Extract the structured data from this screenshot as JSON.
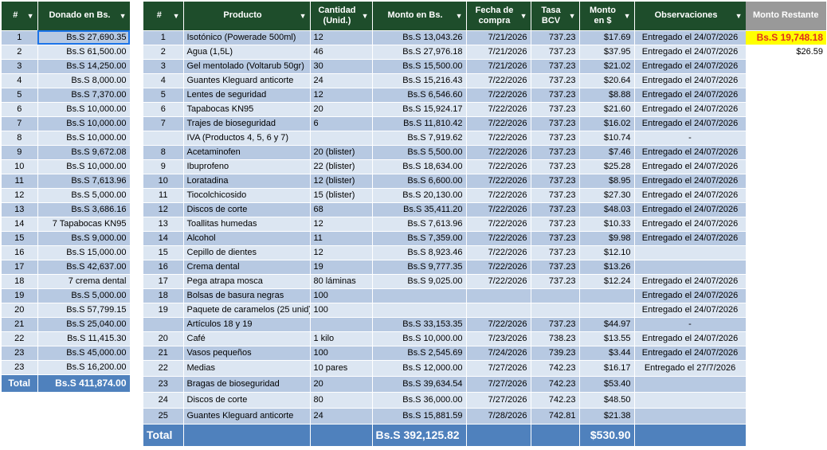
{
  "donations": {
    "headers": {
      "idx": "#",
      "amount": "Donado en Bs."
    },
    "rows": [
      {
        "n": "1",
        "v": "Bs.S 27,690.35"
      },
      {
        "n": "2",
        "v": "Bs.S 61,500.00"
      },
      {
        "n": "3",
        "v": "Bs.S 14,250.00"
      },
      {
        "n": "4",
        "v": "Bs.S 8,000.00"
      },
      {
        "n": "5",
        "v": "Bs.S 7,370.00"
      },
      {
        "n": "6",
        "v": "Bs.S 10,000.00"
      },
      {
        "n": "7",
        "v": "Bs.S 10,000.00"
      },
      {
        "n": "8",
        "v": "Bs.S 10,000.00"
      },
      {
        "n": "9",
        "v": "Bs.S 9,672.08"
      },
      {
        "n": "10",
        "v": "Bs.S 10,000.00"
      },
      {
        "n": "11",
        "v": "Bs.S 7,613.96"
      },
      {
        "n": "12",
        "v": "Bs.S 5,000.00"
      },
      {
        "n": "13",
        "v": "Bs.S 3,686.16"
      },
      {
        "n": "14",
        "v": "7 Tapabocas KN95"
      },
      {
        "n": "15",
        "v": "Bs.S 9,000.00"
      },
      {
        "n": "16",
        "v": "Bs.S 15,000.00"
      },
      {
        "n": "17",
        "v": "Bs.S 42,637.00"
      },
      {
        "n": "18",
        "v": "7 crema dental"
      },
      {
        "n": "19",
        "v": "Bs.S 5,000.00"
      },
      {
        "n": "20",
        "v": "Bs.S 57,799.15"
      },
      {
        "n": "21",
        "v": "Bs.S 25,040.00"
      },
      {
        "n": "22",
        "v": "Bs.S 11,415.30"
      },
      {
        "n": "23",
        "v": "Bs.S 45,000.00"
      },
      {
        "n": "23",
        "v": "Bs.S 16,200.00"
      }
    ],
    "total_label": "Total",
    "total_value": "Bs.S 411,874.00"
  },
  "purchases": {
    "headers": {
      "idx": "#",
      "product": "Producto",
      "qty_line1": "Cantidad",
      "qty_line2": "(Unid.)",
      "amount": "Monto en Bs.",
      "date_line1": "Fecha de",
      "date_line2": "compra",
      "rate_line1": "Tasa",
      "rate_line2": "BCV",
      "usd_line1": "Monto",
      "usd_line2": "en $",
      "notes": "Observaciones"
    },
    "rows": [
      {
        "n": "1",
        "p": "Isotónico (Powerade 500ml)",
        "q": "12",
        "a": "Bs.S 13,043.26",
        "d": "7/21/2026",
        "t": "737.23",
        "u": "$17.69",
        "o": "Entregado el 24/07/2026"
      },
      {
        "n": "2",
        "p": "Agua (1,5L)",
        "q": "46",
        "a": "Bs.S 27,976.18",
        "d": "7/21/2026",
        "t": "737.23",
        "u": "$37.95",
        "o": "Entregado el 24/07/2026"
      },
      {
        "n": "3",
        "p": "Gel mentolado (Voltarub 50gr)",
        "q": "30",
        "a": "Bs.S 15,500.00",
        "d": "7/21/2026",
        "t": "737.23",
        "u": "$21.02",
        "o": "Entregado el 24/07/2026"
      },
      {
        "n": "4",
        "p": "Guantes Kleguard anticorte",
        "q": "24",
        "a": "Bs.S 15,216.43",
        "d": "7/22/2026",
        "t": "737.23",
        "u": "$20.64",
        "o": "Entregado el 24/07/2026"
      },
      {
        "n": "5",
        "p": "Lentes de seguridad",
        "q": "12",
        "a": "Bs.S 6,546.60",
        "d": "7/22/2026",
        "t": "737.23",
        "u": "$8.88",
        "o": "Entregado el 24/07/2026"
      },
      {
        "n": "6",
        "p": "Tapabocas KN95",
        "q": "20",
        "a": "Bs.S 15,924.17",
        "d": "7/22/2026",
        "t": "737.23",
        "u": "$21.60",
        "o": "Entregado el 24/07/2026"
      },
      {
        "n": "7",
        "p": "Trajes de bioseguridad",
        "q": "6",
        "a": "Bs.S 11,810.42",
        "d": "7/22/2026",
        "t": "737.23",
        "u": "$16.02",
        "o": "Entregado el 24/07/2026"
      },
      {
        "n": "",
        "p": "IVA (Productos 4, 5, 6 y 7)",
        "q": "",
        "a": "Bs.S 7,919.62",
        "d": "7/22/2026",
        "t": "737.23",
        "u": "$10.74",
        "o": "-"
      },
      {
        "n": "8",
        "p": "Acetaminofen",
        "q": "20 (blister)",
        "a": "Bs.S 5,500.00",
        "d": "7/22/2026",
        "t": "737.23",
        "u": "$7.46",
        "o": "Entregado el 24/07/2026"
      },
      {
        "n": "9",
        "p": "Ibuprofeno",
        "q": "22 (blister)",
        "a": "Bs.S 18,634.00",
        "d": "7/22/2026",
        "t": "737.23",
        "u": "$25.28",
        "o": "Entregado el 24/07/2026"
      },
      {
        "n": "10",
        "p": "Loratadina",
        "q": "12 (blister)",
        "a": "Bs.S 6,600.00",
        "d": "7/22/2026",
        "t": "737.23",
        "u": "$8.95",
        "o": "Entregado el 24/07/2026"
      },
      {
        "n": "11",
        "p": "Tiocolchicosido",
        "q": "15 (blister)",
        "a": "Bs.S 20,130.00",
        "d": "7/22/2026",
        "t": "737.23",
        "u": "$27.30",
        "o": "Entregado el 24/07/2026"
      },
      {
        "n": "12",
        "p": "Discos de corte",
        "q": "68",
        "a": "Bs.S 35,411.20",
        "d": "7/22/2026",
        "t": "737.23",
        "u": "$48.03",
        "o": "Entregado el 24/07/2026"
      },
      {
        "n": "13",
        "p": "Toallitas humedas",
        "q": "12",
        "a": "Bs.S 7,613.96",
        "d": "7/22/2026",
        "t": "737.23",
        "u": "$10.33",
        "o": "Entregado el 24/07/2026"
      },
      {
        "n": "14",
        "p": "Alcohol",
        "q": "11",
        "a": "Bs.S 7,359.00",
        "d": "7/22/2026",
        "t": "737.23",
        "u": "$9.98",
        "o": "Entregado el 24/07/2026"
      },
      {
        "n": "15",
        "p": "Cepillo de dientes",
        "q": "12",
        "a": "Bs.S 8,923.46",
        "d": "7/22/2026",
        "t": "737.23",
        "u": "$12.10",
        "o": ""
      },
      {
        "n": "16",
        "p": "Crema dental",
        "q": "19",
        "a": "Bs.S 9,777.35",
        "d": "7/22/2026",
        "t": "737.23",
        "u": "$13.26",
        "o": ""
      },
      {
        "n": "17",
        "p": "Pega atrapa mosca",
        "q": "80 láminas",
        "a": "Bs.S 9,025.00",
        "d": "7/22/2026",
        "t": "737.23",
        "u": "$12.24",
        "o": "Entregado el 24/07/2026"
      },
      {
        "n": "18",
        "p": "Bolsas de basura negras",
        "q": "100",
        "a": "",
        "d": "",
        "t": "",
        "u": "",
        "o": "Entregado el 24/07/2026"
      },
      {
        "n": "19",
        "p": "Paquete de caramelos (25 unid)",
        "q": "100",
        "a": "",
        "d": "",
        "t": "",
        "u": "",
        "o": "Entregado el 24/07/2026"
      },
      {
        "n": "",
        "p": "Artículos 18 y 19",
        "q": "",
        "a": "Bs.S 33,153.35",
        "d": "7/22/2026",
        "t": "737.23",
        "u": "$44.97",
        "o": "-"
      },
      {
        "n": "20",
        "p": "Café",
        "q": "1 kilo",
        "a": "Bs.S 10,000.00",
        "d": "7/23/2026",
        "t": "738.23",
        "u": "$13.55",
        "o": "Entregado el 24/07/2026"
      },
      {
        "n": "21",
        "p": "Vasos pequeños",
        "q": "100",
        "a": "Bs.S 2,545.69",
        "d": "7/24/2026",
        "t": "739.23",
        "u": "$3.44",
        "o": "Entregado el 24/07/2026"
      },
      {
        "n": "22",
        "p": "Medias",
        "q": "10 pares",
        "a": "Bs.S 12,000.00",
        "d": "7/27/2026",
        "t": "742.23",
        "u": "$16.17",
        "o": "Entregado el 27/7/2026"
      },
      {
        "n": "23",
        "p": "Bragas de bioseguridad",
        "q": "20",
        "a": "Bs.S 39,634.54",
        "d": "7/27/2026",
        "t": "742.23",
        "u": "$53.40",
        "o": ""
      },
      {
        "n": "24",
        "p": "Discos de corte",
        "q": "80",
        "a": "Bs.S 36,000.00",
        "d": "7/27/2026",
        "t": "742.23",
        "u": "$48.50",
        "o": ""
      },
      {
        "n": "25",
        "p": "Guantes Kleguard anticorte",
        "q": "24",
        "a": "Bs.S 15,881.59",
        "d": "7/28/2026",
        "t": "742.81",
        "u": "$21.38",
        "o": ""
      }
    ],
    "total_label": "Total",
    "total_amount": "Bs.S 392,125.82",
    "total_usd": "$530.90"
  },
  "remaining": {
    "header": "Monto Restante",
    "bs": "Bs.S 19,748.18",
    "usd": "$26.59"
  },
  "icons": {
    "dropdown": "chevron-down-icon"
  },
  "colors": {
    "header_bg": "#1e4d2b",
    "row_dark": "#b7c9e2",
    "row_light": "#dce6f2",
    "total_bg": "#4f81bd",
    "highlight": "#ffff00"
  }
}
